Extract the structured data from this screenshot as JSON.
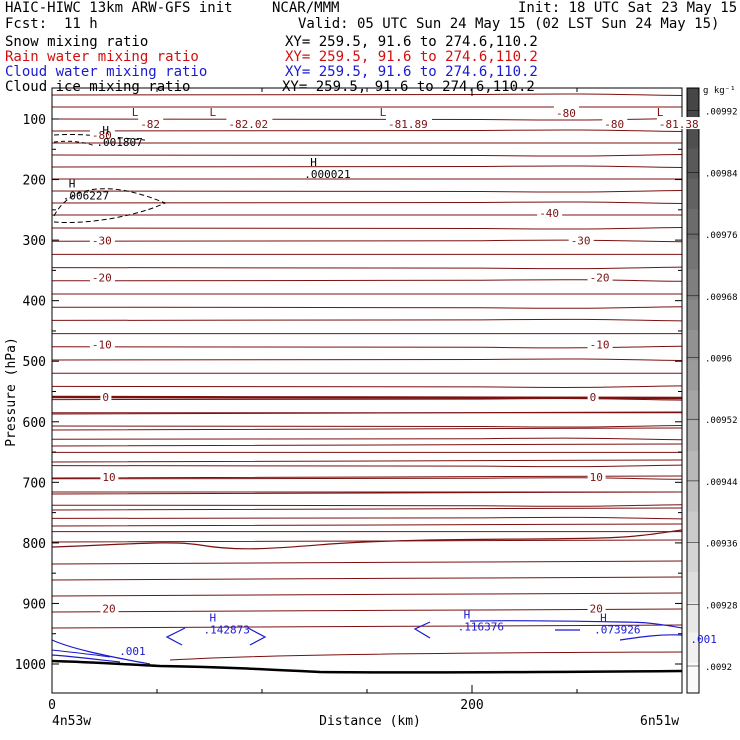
{
  "header": {
    "model": "HAIC-HIWC 13km ARW-GFS init",
    "org": "NCAR/MMM",
    "init": "Init: 18 UTC Sat 23 May 15",
    "fcst_label": "Fcst:",
    "fcst_value": "11 h",
    "valid": "Valid: 05 UTC Sun 24 May 15 (02 LST Sun 24 May 15)",
    "fields": [
      {
        "name": "Snow mixing ratio",
        "xy": "XY= 259.5, 91.6 to 274.6,110.2",
        "color": "#000000"
      },
      {
        "name": "Rain water mixing ratio",
        "xy": "XY= 259.5, 91.6 to 274.6,110.2",
        "color": "#d01010"
      },
      {
        "name": "Cloud water mixing ratio",
        "xy": "XY= 259.5, 91.6 to 274.6,110.2",
        "color": "#1a1ad0"
      },
      {
        "name": "Cloud ice mixing ratio",
        "xy": "XY= 259.5, 91.6 to 274.6,110.2",
        "color": "#000000"
      }
    ]
  },
  "chart_data": {
    "type": "contour-cross-section",
    "ylabel": "Pressure (hPa)",
    "xlabel": "Distance (km)",
    "x_ticks": [
      0,
      200
    ],
    "y_ticks": [
      100,
      200,
      300,
      400,
      500,
      600,
      700,
      800,
      900,
      1000
    ],
    "xlim": [
      0,
      300
    ],
    "ylim": [
      1050,
      50
    ],
    "x_end_labels": [
      "4n53w",
      "6n51w"
    ],
    "colorbar": {
      "unit": "g kg⁻¹",
      "labels": [
        ".0092",
        ".00928",
        ".00936",
        ".00944",
        ".00952",
        ".0096",
        ".00968",
        ".00976",
        ".00984",
        ".00992"
      ]
    },
    "temperature_labels": [
      {
        "text": "-80",
        "x": 19,
        "p": 128
      },
      {
        "text": "-82",
        "x": 42,
        "p": 110
      },
      {
        "text": "-82.02",
        "x": 84,
        "p": 110
      },
      {
        "text": "-81.89",
        "x": 160,
        "p": 110
      },
      {
        "text": "-80",
        "x": 240,
        "p": 92
      },
      {
        "text": "-80",
        "x": 263,
        "p": 110
      },
      {
        "text": "-81.38",
        "x": 289,
        "p": 110
      },
      {
        "text": "-40",
        "x": 232,
        "p": 257
      },
      {
        "text": "-30",
        "x": 19,
        "p": 302
      },
      {
        "text": "-30",
        "x": 247,
        "p": 302
      },
      {
        "text": "-20",
        "x": 19,
        "p": 363
      },
      {
        "text": "-20",
        "x": 256,
        "p": 363
      },
      {
        "text": "-10",
        "x": 19,
        "p": 474
      },
      {
        "text": "-10",
        "x": 256,
        "p": 474
      },
      {
        "text": "0",
        "x": 24,
        "p": 561
      },
      {
        "text": "0",
        "x": 256,
        "p": 561
      },
      {
        "text": "10",
        "x": 24,
        "p": 693
      },
      {
        "text": "10",
        "x": 256,
        "p": 693
      },
      {
        "text": "20",
        "x": 24,
        "p": 910
      },
      {
        "text": "20",
        "x": 256,
        "p": 910
      }
    ],
    "extrema": [
      {
        "mark": "L",
        "x": 38,
        "p": 95
      },
      {
        "mark": "L",
        "x": 75,
        "p": 95
      },
      {
        "mark": "L",
        "x": 156,
        "p": 95
      },
      {
        "mark": "L",
        "x": 288,
        "p": 95
      },
      {
        "mark": "H",
        "x": 24,
        "p": 125,
        "value": ".001807"
      },
      {
        "mark": "H",
        "x": 8,
        "p": 213,
        "value": ".006227"
      },
      {
        "mark": "H",
        "x": 123,
        "p": 178,
        "value": ".000021"
      },
      {
        "mark": "H",
        "x": 75,
        "p": 930,
        "value": ".142873",
        "color": "#1a1ad0"
      },
      {
        "mark": "H",
        "x": 196,
        "p": 925,
        "value": ".116376",
        "color": "#1a1ad0"
      },
      {
        "mark": "H",
        "x": 261,
        "p": 930,
        "value": ".073926",
        "color": "#1a1ad0"
      }
    ],
    "cloud_water_labels": [
      {
        "text": ".001",
        "x": 32,
        "p": 985
      },
      {
        "text": ".001",
        "x": 304,
        "p": 965
      }
    ]
  }
}
